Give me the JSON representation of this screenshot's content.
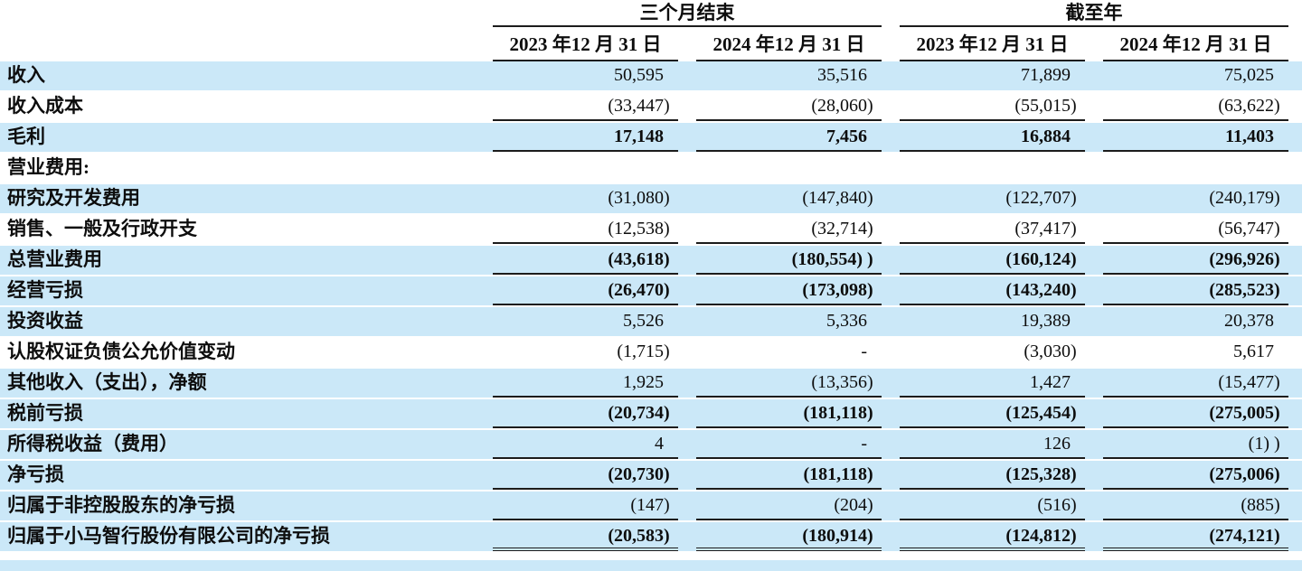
{
  "page": {
    "stripe_color": "#cbe8f8",
    "rule_color": "#1c1c1c",
    "text_color": "#0d0d0d"
  },
  "table": {
    "col_groups": [
      {
        "label": "三个月结束"
      },
      {
        "label": "截至年"
      }
    ],
    "col_headers": [
      "2023 年12 月 31 日",
      "2024 年12 月 31 日",
      "2023 年12 月 31 日",
      "2024 年12 月 31 日"
    ],
    "rows": [
      {
        "label": "收入",
        "values": [
          "50,595",
          "35,516",
          "71,899",
          "75,025"
        ],
        "bold": false,
        "shaded": true,
        "underline": "none"
      },
      {
        "label": "收入成本",
        "values": [
          "(33,447)",
          "(28,060)",
          "(55,015)",
          "(63,622)"
        ],
        "bold": false,
        "shaded": false,
        "underline": "single"
      },
      {
        "label": "毛利",
        "values": [
          "17,148",
          "7,456",
          "16,884",
          "11,403"
        ],
        "bold": true,
        "shaded": true,
        "underline": "single"
      },
      {
        "label": "营业费用:",
        "values": [
          "",
          "",
          "",
          ""
        ],
        "bold": false,
        "shaded": false,
        "underline": "none"
      },
      {
        "label": "研究及开发费用",
        "values": [
          "(31,080)",
          "(147,840)",
          "(122,707)",
          "(240,179)"
        ],
        "bold": false,
        "shaded": true,
        "underline": "none"
      },
      {
        "label": "销售、一般及行政开支",
        "values": [
          "(12,538)",
          "(32,714)",
          "(37,417)",
          "(56,747)"
        ],
        "bold": false,
        "shaded": false,
        "underline": "single"
      },
      {
        "label": "总营业费用",
        "values": [
          "(43,618)",
          "(180,554) )",
          "(160,124)",
          "(296,926)"
        ],
        "bold": true,
        "shaded": true,
        "underline": "single"
      },
      {
        "label": "经营亏损",
        "values": [
          "(26,470)",
          "(173,098)",
          "(143,240)",
          "(285,523)"
        ],
        "bold": true,
        "shaded": true,
        "underline": "single"
      },
      {
        "label": "投资收益",
        "values": [
          "5,526",
          "5,336",
          "19,389",
          "20,378"
        ],
        "bold": false,
        "shaded": true,
        "underline": "none"
      },
      {
        "label": "认股权证负债公允价值变动",
        "values": [
          "(1,715)",
          "-",
          "(3,030)",
          "5,617"
        ],
        "bold": false,
        "shaded": false,
        "underline": "none"
      },
      {
        "label": "其他收入（支出），净额",
        "values": [
          "1,925",
          "(13,356)",
          "1,427",
          "(15,477)"
        ],
        "bold": false,
        "shaded": true,
        "underline": "single"
      },
      {
        "label": "税前亏损",
        "values": [
          "(20,734)",
          "(181,118)",
          "(125,454)",
          "(275,005)"
        ],
        "bold": true,
        "shaded": true,
        "underline": "single"
      },
      {
        "label": "所得税收益（费用）",
        "values": [
          "4",
          "-",
          "126",
          "(1) )"
        ],
        "bold": false,
        "shaded": true,
        "underline": "single"
      },
      {
        "label": "净亏损",
        "values": [
          "(20,730)",
          "(181,118)",
          "(125,328)",
          "(275,006)"
        ],
        "bold": true,
        "shaded": true,
        "underline": "single"
      },
      {
        "label": "归属于非控股股东的净亏损",
        "values": [
          "(147)",
          "(204)",
          "(516)",
          "(885)"
        ],
        "bold": false,
        "shaded": true,
        "underline": "single"
      },
      {
        "label": "归属于小马智行股份有限公司的净亏损",
        "values": [
          "(20,583)",
          "(180,914)",
          "(124,812)",
          "(274,121)"
        ],
        "bold": true,
        "shaded": true,
        "underline": "double"
      }
    ]
  }
}
